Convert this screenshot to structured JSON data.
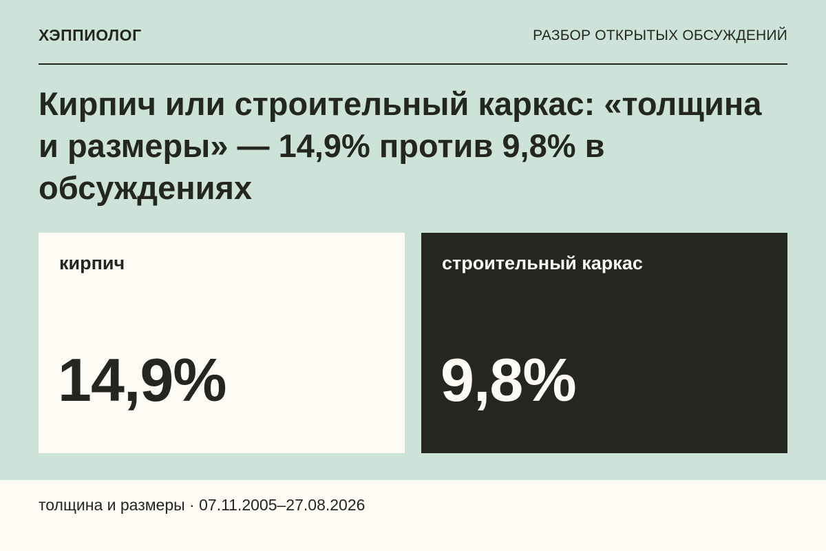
{
  "header": {
    "brand": "ХЭППИОЛОГ",
    "section": "РАЗБОР ОТКРЫТЫХ ОБСУЖДЕНИЙ"
  },
  "headline": "Кирпич или строительный каркас: «толщина и размеры» — 14,9% против 9,8% в обсуждениях",
  "cards": [
    {
      "label": "кирпич",
      "value": "14,9%"
    },
    {
      "label": "строительный каркас",
      "value": "9,8%"
    }
  ],
  "footer": {
    "text": "толщина и размеры · 07.11.2005–27.08.2026"
  },
  "colors": {
    "background": "#cde3da",
    "dark": "#23271f",
    "light": "#fdfbf3"
  }
}
